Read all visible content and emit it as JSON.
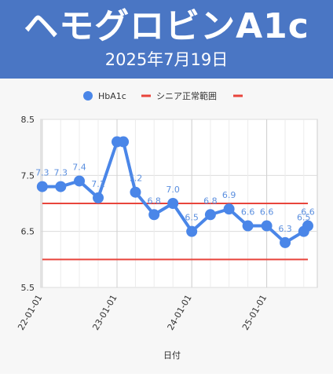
{
  "header": {
    "title": "ヘモグロビンA1c",
    "date": "2025年7月19日"
  },
  "colors": {
    "header_bg": "#4a76c4",
    "series": "#4a86e8",
    "reference": "#e8453c",
    "label": "#5b8fdf"
  },
  "chart_data": {
    "type": "line",
    "xlabel": "日付",
    "ylabel": "",
    "ylim": [
      5.5,
      8.5
    ],
    "yticks": [
      "5.5",
      "6.5",
      "7.5",
      "8.5"
    ],
    "xlim": [
      "2021-12-25",
      "2025-09-05"
    ],
    "xticks": [
      {
        "date": "2022-01-01",
        "label": "22-01-01"
      },
      {
        "date": "2023-01-01",
        "label": "23-01-01"
      },
      {
        "date": "2024-01-01",
        "label": "24-01-01"
      },
      {
        "date": "2025-01-01",
        "label": "25-01-01"
      }
    ],
    "grid": true,
    "legend": "top",
    "series": [
      {
        "name": "HbA1c",
        "color": "#4a86e8",
        "points": [
          {
            "x": "2022-01-01",
            "y": 7.3,
            "label": "7.3"
          },
          {
            "x": "2022-04-01",
            "y": 7.3,
            "label": "7.3"
          },
          {
            "x": "2022-07-01",
            "y": 7.4,
            "label": "7.4"
          },
          {
            "x": "2022-10-01",
            "y": 7.1,
            "label": "7.1"
          },
          {
            "x": "2023-01-01",
            "y": 8.1,
            "label": ""
          },
          {
            "x": "2023-02-01",
            "y": 8.1,
            "label": ""
          },
          {
            "x": "2023-04-01",
            "y": 7.2,
            "label": "7.2"
          },
          {
            "x": "2023-07-01",
            "y": 6.8,
            "label": "6.8"
          },
          {
            "x": "2023-10-01",
            "y": 7.0,
            "label": "7.0"
          },
          {
            "x": "2024-01-01",
            "y": 6.5,
            "label": "6.5"
          },
          {
            "x": "2024-04-01",
            "y": 6.8,
            "label": "6.8"
          },
          {
            "x": "2024-07-01",
            "y": 6.9,
            "label": "6.9"
          },
          {
            "x": "2024-10-01",
            "y": 6.6,
            "label": "6.6"
          },
          {
            "x": "2025-01-01",
            "y": 6.6,
            "label": "6.6"
          },
          {
            "x": "2025-04-01",
            "y": 6.3,
            "label": "6.3"
          },
          {
            "x": "2025-07-01",
            "y": 6.5,
            "label": "6.5"
          },
          {
            "x": "2025-09-05",
            "y": 6.6,
            "label": "6.6"
          }
        ]
      }
    ],
    "reference": {
      "name": "シニア正常範囲",
      "color": "#e8453c",
      "lower": 6.0,
      "upper": 7.0,
      "x_start": "2022-01-01",
      "x_end": "2025-09-05"
    }
  }
}
